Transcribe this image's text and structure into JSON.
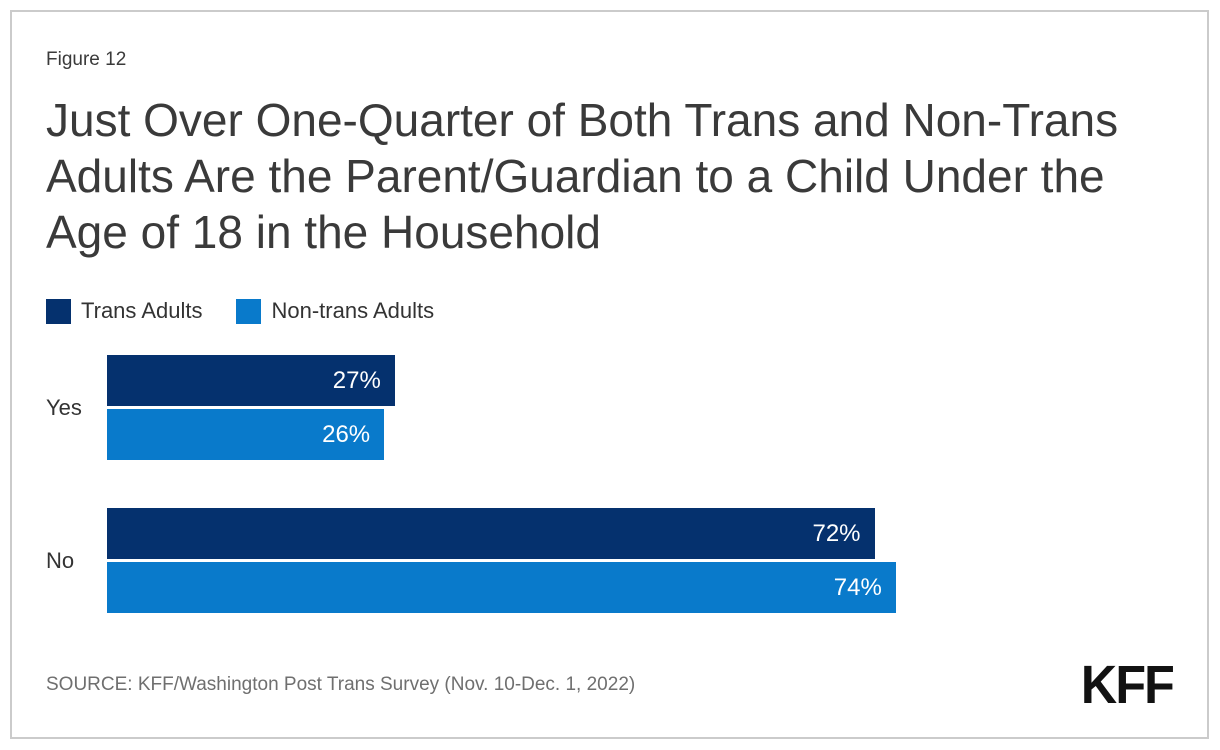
{
  "header": {
    "figure_label": "Figure 12",
    "title_lines": [
      "Just Over One-Quarter of Both Trans and Non-Trans",
      "Adults Are the Parent/Guardian to a Child Under the",
      "Age of 18 in the Household"
    ]
  },
  "chart_data": {
    "type": "bar",
    "orientation": "horizontal",
    "title": "Just Over One-Quarter of Both Trans and Non-Trans Adults Are the Parent/Guardian to a Child Under the Age of 18 in the Household",
    "categories": [
      "Yes",
      "No"
    ],
    "series": [
      {
        "name": "Trans Adults",
        "color": "#05316e",
        "values": [
          27,
          72
        ],
        "labels": [
          "27%",
          "72%"
        ]
      },
      {
        "name": "Non-trans Adults",
        "color": "#097acb",
        "values": [
          26,
          74
        ],
        "labels": [
          "26%",
          "74%"
        ]
      }
    ],
    "xlim": [
      0,
      100
    ],
    "unit": "%",
    "grid": false,
    "legend_position": "top-left",
    "value_label_position": "inside-end"
  },
  "footer": {
    "source": "SOURCE: KFF/Washington Post Trans Survey (Nov. 10-Dec. 1, 2022)",
    "logo": "KFF"
  }
}
